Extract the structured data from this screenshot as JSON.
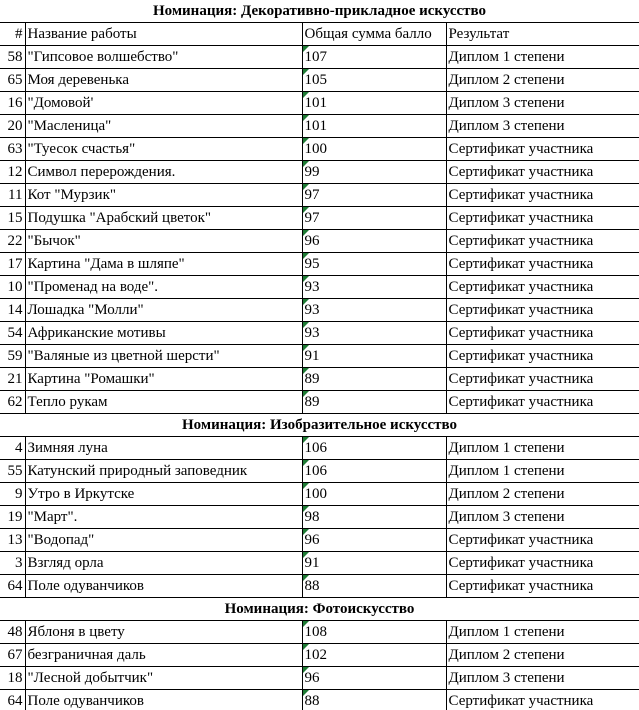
{
  "header": [
    "#",
    "Название работы",
    "Общая сумма балло",
    "Результат"
  ],
  "sections": [
    {
      "title": "Номинация: Декоративно-прикладное искусство",
      "rows": [
        [
          58,
          "\"Гипсовое волшебство\"",
          107,
          "Диплом 1 степени"
        ],
        [
          65,
          "Моя деревенька",
          105,
          "Диплом 2 степени"
        ],
        [
          16,
          "\"Домовой'",
          101,
          "Диплом 3 степени"
        ],
        [
          20,
          "\"Масленица\"",
          101,
          "Диплом 3 степени"
        ],
        [
          63,
          "\"Туесок счастья\"",
          100,
          "Сертификат участника"
        ],
        [
          12,
          "Символ перерождения.",
          99,
          "Сертификат участника"
        ],
        [
          11,
          "Кот \"Мурзик\"",
          97,
          "Сертификат участника"
        ],
        [
          15,
          "Подушка \"Арабский цветок\"",
          97,
          "Сертификат участника"
        ],
        [
          22,
          "\"Бычок\"",
          96,
          "Сертификат участника"
        ],
        [
          17,
          "Картина \"Дама в шляпе\"",
          95,
          "Сертификат участника"
        ],
        [
          10,
          "\"Променад на воде\".",
          93,
          "Сертификат участника"
        ],
        [
          14,
          "Лошадка \"Молли\"",
          93,
          "Сертификат участника"
        ],
        [
          54,
          "Африканские мотивы",
          93,
          "Сертификат участника"
        ],
        [
          59,
          "\"Валяные из цветной шерсти\"",
          91,
          "Сертификат участника"
        ],
        [
          21,
          "Картина \"Ромашки\"",
          89,
          "Сертификат участника"
        ],
        [
          62,
          "Тепло рукам",
          89,
          "Сертификат участника"
        ]
      ]
    },
    {
      "title": "Номинация: Изобразительное искусство",
      "rows": [
        [
          4,
          "Зимняя луна",
          106,
          "Диплом 1 степени"
        ],
        [
          55,
          "Катунский природный заповедник",
          106,
          "Диплом 1 степени"
        ],
        [
          9,
          "Утро в Иркутске",
          100,
          "Диплом 2 степени"
        ],
        [
          19,
          "\"Март\".",
          98,
          "Диплом 3 степени"
        ],
        [
          13,
          "\"Водопад\"",
          96,
          "Сертификат участника"
        ],
        [
          3,
          "Взгляд орла",
          91,
          "Сертификат участника"
        ],
        [
          64,
          "Поле одуванчиков",
          88,
          "Сертификат участника"
        ]
      ]
    },
    {
      "title": "Номинация: Фотоискусство",
      "rows": [
        [
          48,
          "Яблоня в цвету",
          108,
          "Диплом 1 степени"
        ],
        [
          67,
          "безграничная даль",
          102,
          "Диплом 2 степени"
        ],
        [
          18,
          "\"Лесной добытчик\"",
          96,
          "Диплом 3 степени"
        ],
        [
          64,
          "Поле одуванчиков",
          88,
          "Сертификат участника"
        ]
      ]
    }
  ]
}
